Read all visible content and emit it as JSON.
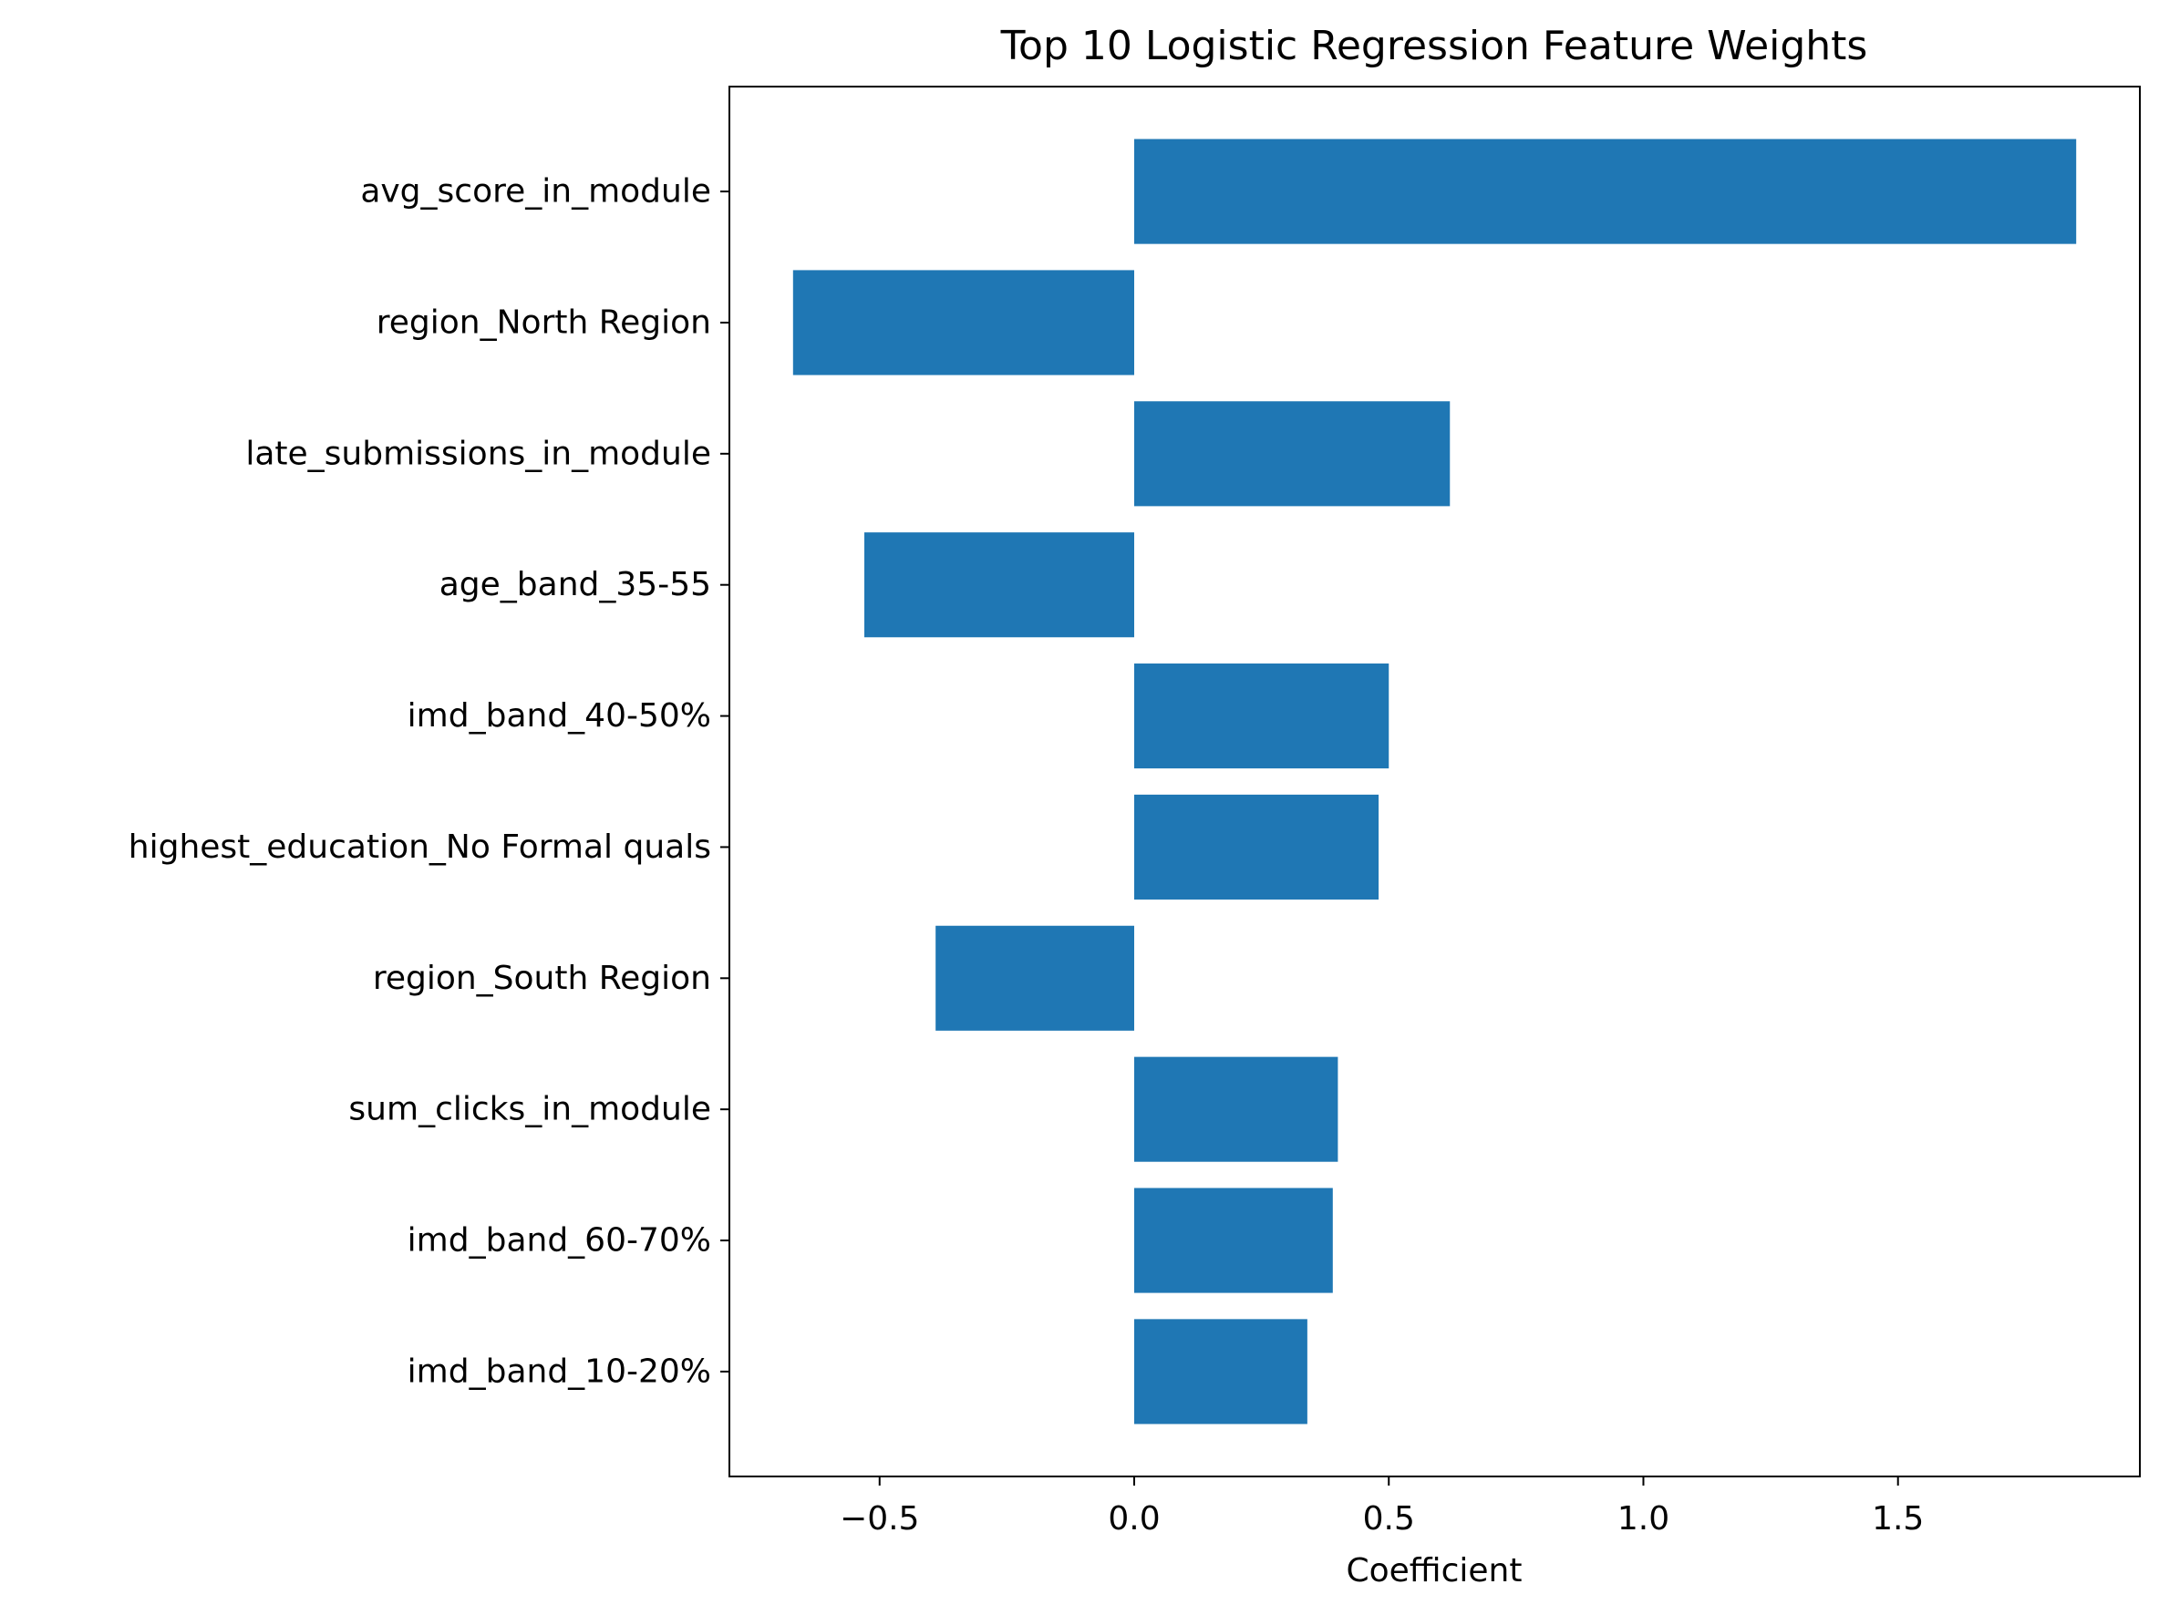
{
  "chart_data": {
    "type": "bar",
    "orientation": "horizontal",
    "title": "Top 10 Logistic Regression Feature Weights",
    "xlabel": "Coefficient",
    "ylabel": "",
    "categories": [
      "avg_score_in_module",
      "region_North Region",
      "late_submissions_in_module",
      "age_band_35-55",
      "imd_band_40-50%",
      "highest_education_No Formal quals",
      "region_South Region",
      "sum_clicks_in_module",
      "imd_band_60-70%",
      "imd_band_10-20%"
    ],
    "values": [
      1.85,
      -0.67,
      0.62,
      -0.53,
      0.5,
      0.48,
      -0.39,
      0.4,
      0.39,
      0.34
    ],
    "xlim": [
      -0.795,
      1.975
    ],
    "xticks": [
      -0.5,
      0.0,
      0.5,
      1.0,
      1.5
    ],
    "xtick_labels": [
      "−0.5",
      "0.0",
      "0.5",
      "1.0",
      "1.5"
    ],
    "grid": false,
    "bar_color": "#1f77b4"
  }
}
